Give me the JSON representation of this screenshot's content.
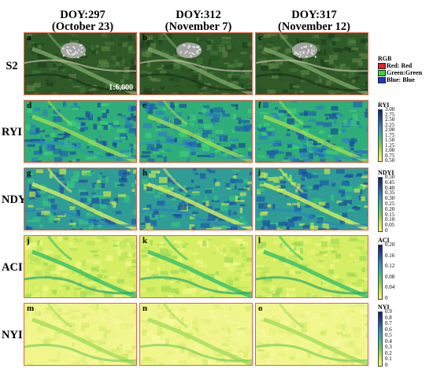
{
  "columns": [
    {
      "doy": "DOY:297",
      "date": "(October 23)"
    },
    {
      "doy": "DOY:312",
      "date": "(November 7)"
    },
    {
      "doy": "DOY:317",
      "date": "(November 12)"
    }
  ],
  "rows": [
    {
      "label": "S2",
      "panels": [
        "a",
        "b",
        "c"
      ],
      "style": "rgb"
    },
    {
      "label": "RYI",
      "panels": [
        "d",
        "e",
        "f"
      ],
      "style": "ryi"
    },
    {
      "label": "NDYI",
      "panels": [
        "g",
        "h",
        "i"
      ],
      "style": "ndyi"
    },
    {
      "label": "ACI",
      "panels": [
        "j",
        "k",
        "l"
      ],
      "style": "aci"
    },
    {
      "label": "NYI",
      "panels": [
        "m",
        "n",
        "o"
      ],
      "style": "nyi"
    }
  ],
  "scale_label": "1:6,000",
  "rgb_legend": {
    "title": "RGB",
    "items": [
      {
        "label": "Red: Red",
        "color": "#e0202a"
      },
      {
        "label": "Green:Green",
        "color": "#35d83a"
      },
      {
        "label": "Blue: Blue",
        "color": "#2431c8"
      }
    ]
  },
  "colorbars": [
    {
      "title": "RYI",
      "ticks": [
        "3.00",
        "2.75",
        "2.50",
        "2.25",
        "2.00",
        "1.75",
        "1.50",
        "1.25",
        "1.00",
        "0.75",
        "0.50"
      ]
    },
    {
      "title": "NDYI",
      "ticks": [
        "0.50",
        "0.45",
        "0.40",
        "0.35",
        "0.30",
        "0.25",
        "0.20",
        "0.15",
        "0.10",
        "0.05",
        "0"
      ]
    },
    {
      "title": "ACI",
      "ticks": [
        "0.20",
        "0.16",
        "0.12",
        "0.08",
        "0.04",
        "0"
      ]
    },
    {
      "title": "NYI",
      "ticks": [
        "0.9",
        "0.8",
        "0.7",
        "0.6",
        "0.5",
        "0.4",
        "0.3",
        "0.2",
        "0.1",
        "0"
      ]
    }
  ]
}
